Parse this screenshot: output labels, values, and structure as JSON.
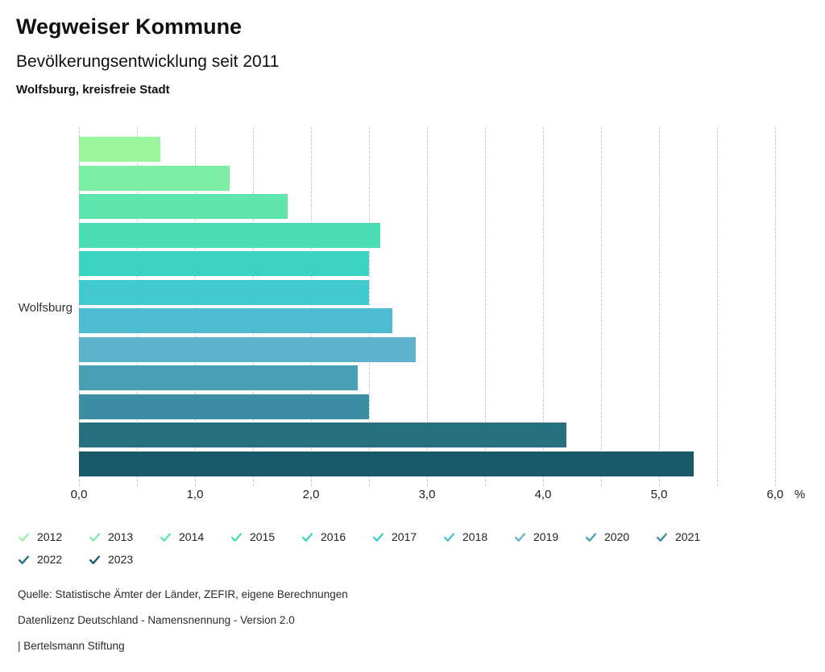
{
  "header": {
    "title": "Wegweiser Kommune",
    "subtitle": "Bevölkerungsentwicklung seit 2011",
    "region": "Wolfsburg, kreisfreie Stadt"
  },
  "chart_data": {
    "type": "bar",
    "orientation": "horizontal",
    "title": "Bevölkerungsentwicklung seit 2011",
    "category_label": "Wolfsburg",
    "unit": "%",
    "xlim": [
      0,
      6
    ],
    "grid_step": 0.5,
    "grid": true,
    "legend_position": "bottom",
    "x_ticks": [
      "0,0",
      "1,0",
      "2,0",
      "3,0",
      "4,0",
      "5,0",
      "6,0"
    ],
    "series": [
      {
        "year": "2012",
        "value": 0.7,
        "color": "#99f59b"
      },
      {
        "year": "2013",
        "value": 1.3,
        "color": "#7ceda3"
      },
      {
        "year": "2014",
        "value": 1.8,
        "color": "#5fe4ab"
      },
      {
        "year": "2015",
        "value": 2.6,
        "color": "#4adcb5"
      },
      {
        "year": "2016",
        "value": 2.5,
        "color": "#3bd3c3"
      },
      {
        "year": "2017",
        "value": 2.5,
        "color": "#40c9cf"
      },
      {
        "year": "2018",
        "value": 2.7,
        "color": "#4dbcd1"
      },
      {
        "year": "2019",
        "value": 2.9,
        "color": "#5db3cc"
      },
      {
        "year": "2020",
        "value": 2.4,
        "color": "#49a0b5"
      },
      {
        "year": "2021",
        "value": 2.5,
        "color": "#3a8da2"
      },
      {
        "year": "2022",
        "value": 4.2,
        "color": "#27707f"
      },
      {
        "year": "2023",
        "value": 5.3,
        "color": "#185a6a"
      }
    ]
  },
  "footer": {
    "lines": [
      "Quelle: Statistische Ämter der Länder, ZEFIR, eigene Berechnungen",
      "Datenlizenz Deutschland - Namensnennung - Version 2.0",
      "| Bertelsmann Stiftung"
    ]
  }
}
